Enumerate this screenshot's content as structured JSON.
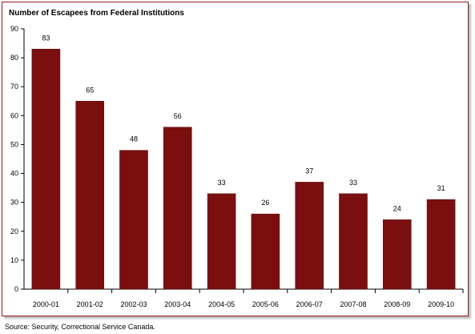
{
  "chart_data": {
    "type": "bar",
    "title": "Number of Escapees from Federal Institutions",
    "xlabel": "",
    "ylabel": "",
    "categories": [
      "2000-01",
      "2001-02",
      "2002-03",
      "2003-04",
      "2004-05",
      "2005-06",
      "2006-07",
      "2007-08",
      "2008-09",
      "2009-10"
    ],
    "values": [
      83,
      65,
      48,
      56,
      33,
      26,
      37,
      33,
      24,
      31
    ],
    "ylim": [
      0,
      90
    ],
    "yticks": [
      0,
      10,
      20,
      30,
      40,
      50,
      60,
      70,
      80,
      90
    ],
    "grid": false,
    "bar_color": "#7b0f0f",
    "data_labels": true
  },
  "source": "Source:  Security, Correctional Service Canada."
}
